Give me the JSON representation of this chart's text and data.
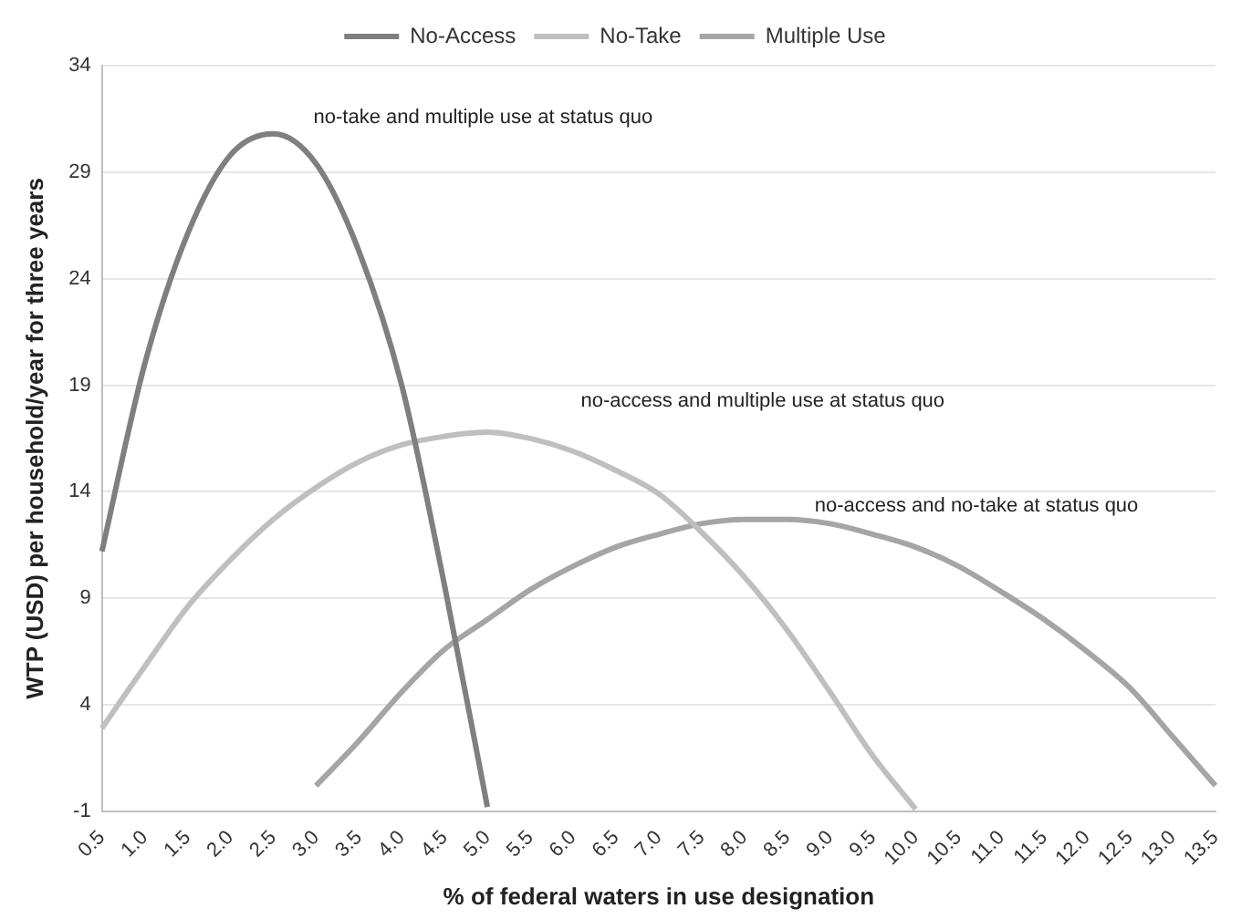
{
  "chart_data": {
    "type": "line",
    "xlabel": "% of federal waters in use designation",
    "ylabel": "WTP (USD) per household/year for three years",
    "categories": [
      "0.5",
      "1.0",
      "1.5",
      "2.0",
      "2.5",
      "3.0",
      "3.5",
      "4.0",
      "4.5",
      "5.0",
      "5.5",
      "6.0",
      "6.5",
      "7.0",
      "7.5",
      "8.0",
      "8.5",
      "9.0",
      "9.5",
      "10.0",
      "10.5",
      "11.0",
      "11.5",
      "12.0",
      "12.5",
      "13.0",
      "13.5"
    ],
    "series": [
      {
        "name": "No-Access",
        "color": "#7f7f7f",
        "values": [
          11.2,
          20.0,
          26.1,
          29.8,
          30.8,
          29.4,
          25.3,
          19.0,
          9.6,
          -0.8,
          null,
          null,
          null,
          null,
          null,
          null,
          null,
          null,
          null,
          null,
          null,
          null,
          null,
          null,
          null,
          null,
          null
        ]
      },
      {
        "name": "No-Take",
        "color": "#bfbfbf",
        "values": [
          2.9,
          5.8,
          8.6,
          10.8,
          12.7,
          14.2,
          15.4,
          16.2,
          16.6,
          16.8,
          16.5,
          15.9,
          15.0,
          13.9,
          12.1,
          10.0,
          7.5,
          4.6,
          1.6,
          -0.9,
          null,
          null,
          null,
          null,
          null,
          null,
          null
        ]
      },
      {
        "name": "Multiple Use",
        "color": "#a5a5a5",
        "values": [
          null,
          null,
          null,
          null,
          null,
          0.2,
          2.3,
          4.6,
          6.6,
          8.0,
          9.4,
          10.5,
          11.4,
          12.0,
          12.5,
          12.7,
          12.7,
          12.5,
          12.0,
          11.4,
          10.5,
          9.3,
          8.0,
          6.5,
          4.8,
          2.5,
          0.2
        ]
      }
    ],
    "ylim": [
      -1,
      34
    ],
    "yticks": [
      -1,
      4,
      9,
      14,
      19,
      24,
      29,
      34
    ],
    "grid": "y",
    "legend": "top",
    "marker": "none",
    "line_style": "solid",
    "annotations": [
      "no-take and multiple use at status quo",
      "no-access and multiple use at status quo",
      "no-access and no-take at status quo"
    ]
  }
}
